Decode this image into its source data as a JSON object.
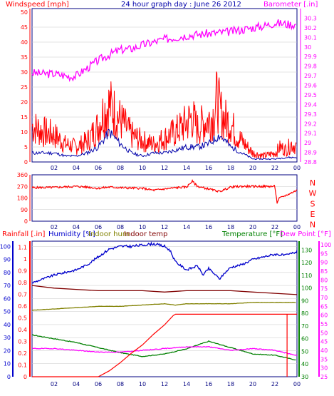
{
  "title": "24 hour graph day : June 26 2012",
  "colors": {
    "wind": "#ff0000",
    "gust": "#ff0000",
    "avg_wind": "#0000aa",
    "barometer": "#ff00ff",
    "humidity": "#0000cc",
    "indoor_hum": "#808000",
    "indoor_temp": "#800000",
    "temperature": "#008000",
    "dew_point": "#ff00ff",
    "rainfall": "#ff0000",
    "solar": "#ffff00",
    "axis_dark": "#000080",
    "text_blue": "#0000aa"
  },
  "chart_data": [
    {
      "type": "line",
      "title": "24 hour graph day : June 26 2012",
      "x_ticks": [
        "02",
        "04",
        "06",
        "08",
        "10",
        "12",
        "14",
        "16",
        "18",
        "20",
        "22",
        "00"
      ],
      "ylabel_left": "Windspeed [mph]",
      "ylabel_right": "Barometer [.in]",
      "ylim_left": [
        0,
        50
      ],
      "y_ticks_left": [
        "0",
        "5",
        "10",
        "15",
        "20",
        "25",
        "30",
        "35",
        "40",
        "45",
        "50"
      ],
      "ylim_right": [
        28.8,
        30.4
      ],
      "y_ticks_right": [
        "28.8",
        "28.9",
        "29",
        "29.1",
        "29.2",
        "29.3",
        "29.4",
        "29.5",
        "29.6",
        "29.7",
        "29.8",
        "29.9",
        "30",
        "30.1",
        "30.2",
        "30.3"
      ],
      "series": [
        {
          "axis": "left",
          "x": [
            0,
            1,
            2,
            3,
            4,
            5,
            6,
            6.5,
            7,
            8,
            9,
            10,
            11,
            12,
            13,
            14,
            14.5,
            15,
            15.5,
            16,
            16.5,
            16.8,
            17,
            17.5,
            18,
            18.5,
            19,
            20,
            21,
            22,
            22.5,
            23,
            23.5,
            24
          ],
          "values": [
            12,
            10,
            9,
            6,
            5,
            7,
            12,
            17,
            19,
            14,
            9,
            7,
            6,
            8,
            10,
            13,
            15,
            11,
            13,
            14,
            16,
            22,
            17,
            14,
            13,
            9,
            7,
            3,
            2,
            3,
            5,
            4,
            6,
            5
          ]
        },
        {
          "axis": "left",
          "x": [
            0,
            1,
            2,
            3,
            4,
            5,
            6,
            7,
            8,
            9,
            10,
            11,
            12,
            13,
            14,
            15,
            16,
            17,
            18,
            19,
            20,
            21,
            22,
            23,
            24
          ],
          "values": [
            3,
            3,
            3,
            2,
            2,
            3,
            5,
            10,
            6,
            3,
            2,
            3,
            3,
            4,
            5,
            5,
            6,
            9,
            5,
            3,
            1,
            1,
            1,
            1.5,
            1.5
          ]
        },
        {
          "axis": "right",
          "x": [
            0,
            1,
            2,
            3,
            3.5,
            4,
            5,
            6,
            7,
            8,
            9,
            10,
            11,
            12,
            13,
            14,
            15,
            16,
            17,
            18,
            19,
            20,
            21,
            22,
            23,
            24
          ],
          "values": [
            29.73,
            29.72,
            29.72,
            29.7,
            29.69,
            29.7,
            29.78,
            29.86,
            29.92,
            29.97,
            29.98,
            30.02,
            30.05,
            30.08,
            30.1,
            30.12,
            30.13,
            30.14,
            30.15,
            30.16,
            30.18,
            30.2,
            30.22,
            30.25,
            30.24,
            30.23
          ]
        }
      ]
    },
    {
      "type": "line",
      "x_ticks": [
        "02",
        "04",
        "06",
        "08",
        "10",
        "12",
        "14",
        "16",
        "18",
        "20",
        "22",
        "00"
      ],
      "ylim_left": [
        0,
        360
      ],
      "y_ticks_left": [
        "0",
        "90",
        "180",
        "270",
        "360"
      ],
      "right_labels": [
        "N",
        "W",
        "S",
        "E",
        "N"
      ],
      "series": [
        {
          "x": [
            0,
            2,
            4,
            5,
            6,
            7,
            8,
            10,
            11,
            12,
            13,
            14,
            14.5,
            15,
            16,
            17,
            18,
            19,
            20,
            21,
            22,
            22.2,
            22.4,
            23,
            24
          ],
          "values": [
            260,
            262,
            270,
            265,
            255,
            265,
            260,
            255,
            240,
            250,
            260,
            265,
            310,
            270,
            250,
            230,
            265,
            270,
            270,
            270,
            270,
            140,
            180,
            200,
            240
          ]
        }
      ]
    },
    {
      "type": "line",
      "x_ticks": [
        "02",
        "04",
        "06",
        "08",
        "10",
        "12",
        "14",
        "16",
        "18",
        "20",
        "22",
        "00"
      ],
      "label_rainfall": "Rainfall [.in]",
      "label_humidity": "Humidity [%]",
      "label_indoor_hum": "Indoor hum",
      "label_indoor_temp": "Indoor temp",
      "label_temperature": "Temperature [°F]",
      "label_dew_point": "Dew Point [°F]",
      "rain_ticks": [
        "0",
        "0.1",
        "0.2",
        "0.3",
        "0.4",
        "0.5",
        "0.6",
        "0.7",
        "0.8",
        "0.9",
        "1",
        "1.1"
      ],
      "rain_lim": [
        0,
        1.15
      ],
      "hum_ticks": [
        "0",
        "10",
        "20",
        "30",
        "40",
        "50",
        "60",
        "70",
        "80",
        "90",
        "100"
      ],
      "hum_lim": [
        0,
        104
      ],
      "temp_ticks": [
        "30",
        "40",
        "50",
        "60",
        "70",
        "80",
        "90",
        "100",
        "110",
        "120",
        "130"
      ],
      "temp_lim": [
        30,
        137
      ],
      "dew_ticks": [
        "25",
        "30",
        "35",
        "40",
        "45",
        "50",
        "55",
        "60",
        "65",
        "70",
        "75",
        "80",
        "85",
        "90",
        "95",
        "100"
      ],
      "dew_lim": [
        25,
        102
      ],
      "series": [
        {
          "axis": "humidity",
          "x": [
            0,
            1,
            2,
            3,
            4,
            5,
            6,
            7,
            8,
            9,
            10,
            11,
            12,
            12.5,
            13,
            14,
            15,
            15.5,
            16,
            17,
            17.5,
            18,
            19,
            20,
            21,
            22,
            23,
            24
          ],
          "values": [
            72,
            75,
            78,
            80,
            82,
            86,
            92,
            98,
            100,
            100,
            101,
            102,
            100,
            97,
            88,
            82,
            85,
            78,
            83,
            75,
            80,
            84,
            86,
            90,
            92,
            94,
            93,
            96
          ]
        },
        {
          "axis": "humidity",
          "x": [
            0,
            2,
            4,
            6,
            8,
            10,
            12,
            14,
            16,
            18,
            20,
            22,
            24
          ],
          "values": [
            70,
            68,
            67,
            66,
            66,
            66,
            65,
            66,
            66,
            66,
            65,
            64,
            63
          ]
        },
        {
          "axis": "humidity",
          "x": [
            0,
            2,
            4,
            6,
            8,
            10,
            12,
            13,
            14,
            16,
            18,
            20,
            22,
            24
          ],
          "values": [
            51,
            52,
            53,
            54,
            54,
            55,
            56,
            55,
            56,
            56,
            56,
            57,
            57,
            57
          ]
        },
        {
          "axis": "temperature",
          "x": [
            0,
            2,
            4,
            6,
            8,
            10,
            12,
            14,
            16,
            18,
            20,
            22,
            24
          ],
          "values": [
            63,
            60,
            57,
            53,
            49,
            46,
            48,
            52,
            58,
            53,
            48,
            47,
            43
          ]
        },
        {
          "axis": "dew_point",
          "x": [
            0,
            2,
            4,
            6,
            8,
            10,
            12,
            14,
            16,
            18,
            20,
            22,
            24
          ],
          "values": [
            41,
            41,
            40,
            39,
            39,
            40,
            41,
            42,
            42,
            40,
            41,
            40,
            37
          ]
        },
        {
          "axis": "rainfall",
          "x": [
            0,
            5.5,
            6,
            7,
            8,
            9,
            10,
            11,
            12,
            12.8,
            13,
            22,
            23,
            24
          ],
          "values": [
            0,
            0,
            0,
            0.05,
            0.12,
            0.2,
            0.27,
            0.36,
            0.44,
            0.52,
            0.53,
            0.53,
            0.53,
            0.53
          ]
        },
        {
          "axis": "rainfall",
          "x": [
            23.1,
            23.1
          ],
          "values": [
            0.53,
            0
          ]
        }
      ]
    }
  ]
}
